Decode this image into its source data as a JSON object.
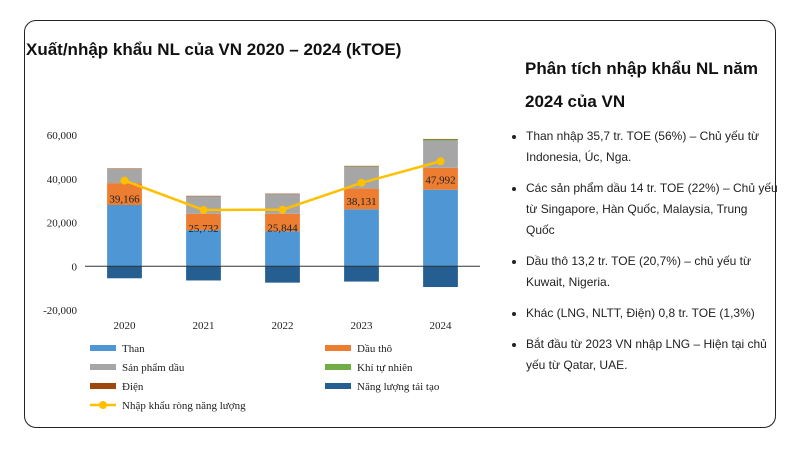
{
  "chart_title": "Xuất/nhập khẩu NL của VN 2020 – 2024 (kTOE)",
  "panel": {
    "title": "Phân tích nhập khẩu NL năm 2024 của VN",
    "bullets": [
      "Than nhập 35,7 tr. TOE (56%) – Chủ yếu từ Indonesia, Úc, Nga.",
      "Các sản phẩm dầu 14 tr. TOE (22%) – Chủ yếu từ Singapore, Hàn Quốc, Malaysia, Trung Quốc",
      "Dầu thô 13,2 tr. TOE (20,7%) – chủ yếu từ Kuwait, Nigeria.",
      "Khác (LNG, NLTT, Điện) 0,8 tr. TOE (1,3%)",
      "Bắt đầu từ 2023 VN nhập LNG – Hiện tại chủ yếu từ Qatar, UAE."
    ]
  },
  "chart_data": {
    "type": "bar",
    "stacked": true,
    "categories": [
      "2020",
      "2021",
      "2022",
      "2023",
      "2024"
    ],
    "ylim": [
      -20000,
      60000
    ],
    "yticks": [
      -20000,
      0,
      20000,
      40000,
      60000
    ],
    "ytick_labels": [
      "-20,000",
      "0",
      "20,000",
      "40,000",
      "60,000"
    ],
    "series": [
      {
        "name": "Than",
        "kind": "bar",
        "color": "#4e97d4",
        "values": [
          28000,
          16500,
          16000,
          26000,
          35000
        ]
      },
      {
        "name": "Dầu thô",
        "kind": "bar",
        "color": "#ec7d31",
        "values": [
          10000,
          7500,
          8000,
          9500,
          10000
        ]
      },
      {
        "name": "Sản phẩm dầu",
        "kind": "bar",
        "color": "#a6a6a6",
        "values": [
          6500,
          8000,
          9000,
          10000,
          12500
        ]
      },
      {
        "name": "Khí tự nhiên",
        "kind": "bar",
        "color": "#70ad47",
        "values": [
          0,
          0,
          0,
          200,
          500
        ]
      },
      {
        "name": "Điện",
        "kind": "bar",
        "color": "#9e480e",
        "values": [
          200,
          200,
          200,
          200,
          200
        ]
      },
      {
        "name": "Năng lượng tái tạo",
        "kind": "bar",
        "color": "#255e91",
        "values": [
          -5500,
          -6500,
          -7500,
          -7000,
          -9500
        ]
      },
      {
        "name": "Nhập khẩu ròng năng lượng",
        "kind": "line",
        "color": "#ffc000",
        "values": [
          39166,
          25732,
          25844,
          38131,
          47992
        ]
      }
    ],
    "line_labels": [
      "39,166",
      "25,732",
      "25,844",
      "38,131",
      "47,992"
    ],
    "grid": false,
    "legend": "bottom"
  }
}
